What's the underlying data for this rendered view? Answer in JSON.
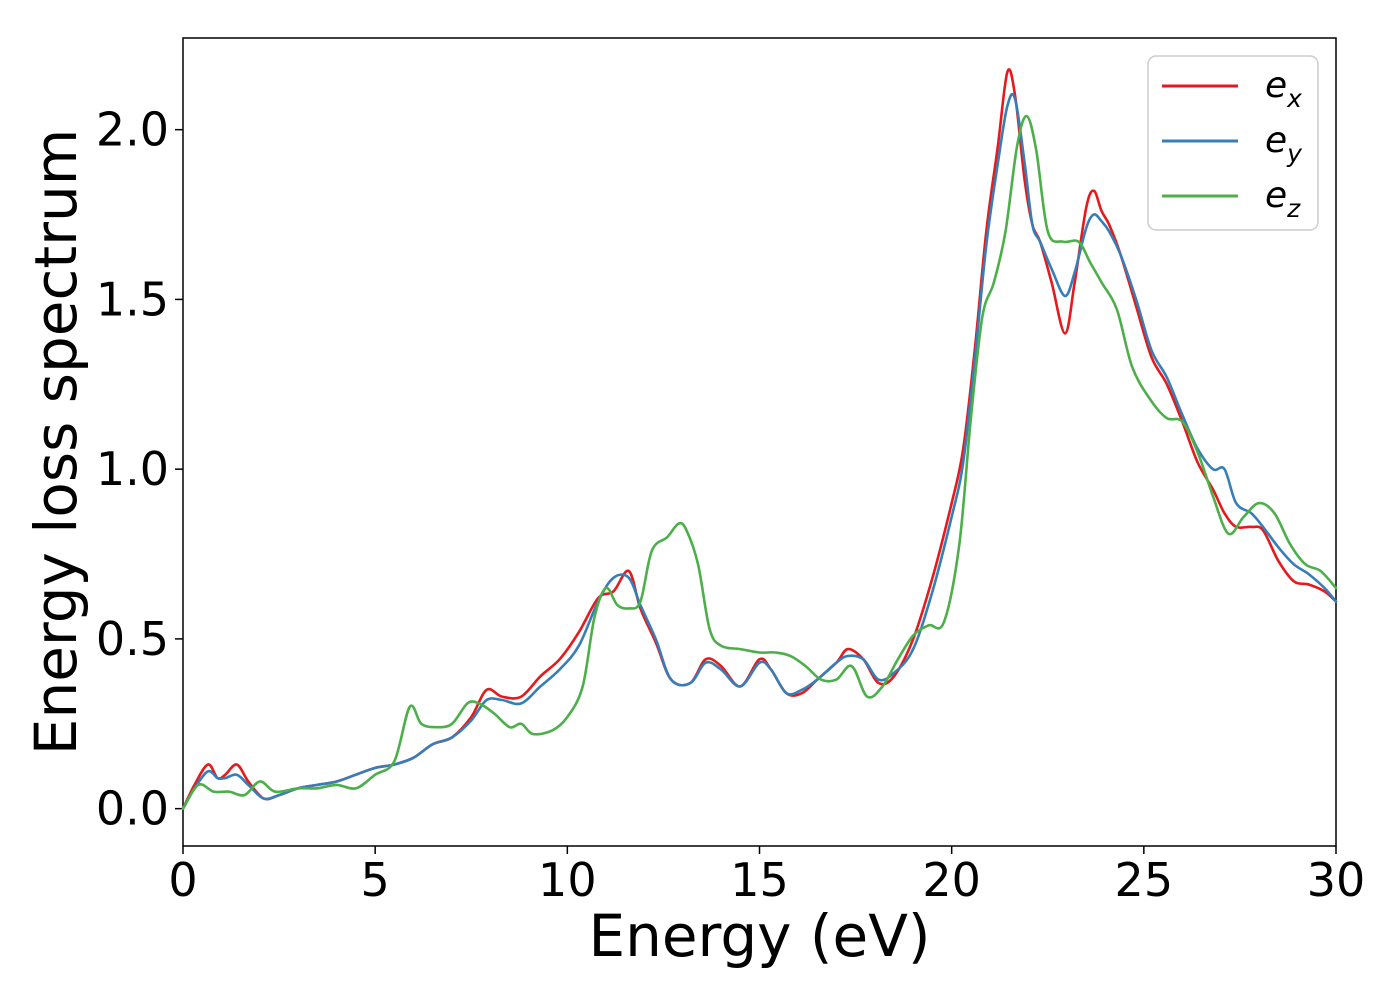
{
  "chart_data": {
    "type": "line",
    "title": "",
    "xlabel": "Energy (eV)",
    "ylabel": "Energy loss spectrum",
    "xlim": [
      0,
      30
    ],
    "ylim": [
      -0.11,
      2.27
    ],
    "xticks": [
      0,
      5,
      10,
      15,
      20,
      25,
      30
    ],
    "xtick_labels": [
      "0",
      "5",
      "10",
      "15",
      "20",
      "25",
      "30"
    ],
    "yticks": [
      0.0,
      0.5,
      1.0,
      1.5,
      2.0
    ],
    "ytick_labels": [
      "0.0",
      "0.5",
      "1.0",
      "1.5",
      "2.0"
    ],
    "grid": false,
    "legend_position": "top-right",
    "series": [
      {
        "name": "e_x",
        "legend_base": "e",
        "legend_sub": "x",
        "color": "#e41a1c",
        "x": [
          0,
          0.3,
          0.65,
          0.9,
          1.1,
          1.4,
          1.7,
          2.1,
          2.5,
          3.0,
          3.5,
          4.0,
          4.5,
          5.0,
          5.5,
          6.0,
          6.5,
          7.0,
          7.5,
          7.9,
          8.3,
          8.8,
          9.3,
          9.8,
          10.3,
          10.8,
          11.2,
          11.6,
          11.9,
          12.3,
          12.7,
          13.2,
          13.6,
          14.0,
          14.5,
          15.0,
          15.3,
          15.7,
          16.1,
          16.5,
          17.0,
          17.3,
          17.7,
          18.1,
          18.5,
          19.0,
          19.5,
          20.0,
          20.3,
          20.6,
          20.9,
          21.2,
          21.45,
          21.65,
          21.9,
          22.1,
          22.3,
          22.6,
          22.95,
          23.2,
          23.5,
          23.7,
          23.9,
          24.1,
          24.4,
          24.8,
          25.2,
          25.6,
          26.0,
          26.4,
          26.8,
          27.1,
          27.4,
          27.8,
          28.1,
          28.5,
          28.9,
          29.3,
          29.7,
          30.0
        ],
        "y": [
          0.0,
          0.07,
          0.13,
          0.09,
          0.1,
          0.13,
          0.08,
          0.03,
          0.04,
          0.06,
          0.07,
          0.08,
          0.1,
          0.12,
          0.13,
          0.15,
          0.19,
          0.21,
          0.27,
          0.35,
          0.33,
          0.33,
          0.39,
          0.44,
          0.52,
          0.62,
          0.64,
          0.7,
          0.59,
          0.49,
          0.38,
          0.37,
          0.44,
          0.42,
          0.36,
          0.44,
          0.41,
          0.34,
          0.34,
          0.38,
          0.43,
          0.47,
          0.44,
          0.37,
          0.39,
          0.5,
          0.68,
          0.9,
          1.06,
          1.35,
          1.7,
          1.95,
          2.17,
          2.1,
          1.85,
          1.72,
          1.67,
          1.55,
          1.4,
          1.55,
          1.77,
          1.82,
          1.76,
          1.72,
          1.63,
          1.48,
          1.33,
          1.25,
          1.14,
          1.02,
          0.94,
          0.87,
          0.83,
          0.83,
          0.82,
          0.73,
          0.67,
          0.66,
          0.64,
          0.61
        ]
      },
      {
        "name": "e_y",
        "legend_base": "e",
        "legend_sub": "y",
        "color": "#377eb8",
        "x": [
          0,
          0.3,
          0.65,
          0.9,
          1.1,
          1.4,
          1.7,
          2.1,
          2.5,
          3.0,
          3.5,
          4.0,
          4.5,
          5.0,
          5.5,
          6.0,
          6.5,
          7.0,
          7.5,
          7.9,
          8.3,
          8.8,
          9.3,
          9.8,
          10.3,
          10.8,
          11.2,
          11.6,
          11.9,
          12.3,
          12.7,
          13.2,
          13.6,
          14.0,
          14.5,
          15.0,
          15.3,
          15.7,
          16.1,
          16.5,
          17.0,
          17.3,
          17.7,
          18.1,
          18.5,
          19.0,
          19.5,
          20.0,
          20.3,
          20.6,
          20.9,
          21.2,
          21.45,
          21.65,
          21.9,
          22.1,
          22.3,
          22.6,
          22.95,
          23.2,
          23.5,
          23.7,
          23.9,
          24.1,
          24.4,
          24.8,
          25.2,
          25.6,
          26.0,
          26.4,
          26.8,
          27.1,
          27.4,
          27.8,
          28.1,
          28.5,
          28.9,
          29.3,
          29.7,
          30.0
        ],
        "y": [
          0.0,
          0.06,
          0.11,
          0.09,
          0.09,
          0.1,
          0.07,
          0.03,
          0.04,
          0.06,
          0.07,
          0.08,
          0.1,
          0.12,
          0.13,
          0.15,
          0.19,
          0.21,
          0.26,
          0.32,
          0.32,
          0.31,
          0.36,
          0.41,
          0.48,
          0.61,
          0.68,
          0.68,
          0.6,
          0.5,
          0.38,
          0.37,
          0.43,
          0.41,
          0.36,
          0.43,
          0.41,
          0.34,
          0.35,
          0.38,
          0.43,
          0.45,
          0.44,
          0.38,
          0.4,
          0.47,
          0.64,
          0.86,
          1.02,
          1.32,
          1.66,
          1.9,
          2.07,
          2.09,
          1.9,
          1.72,
          1.67,
          1.59,
          1.51,
          1.58,
          1.71,
          1.75,
          1.73,
          1.7,
          1.63,
          1.5,
          1.35,
          1.27,
          1.16,
          1.06,
          1.0,
          1.0,
          0.9,
          0.87,
          0.83,
          0.77,
          0.72,
          0.69,
          0.65,
          0.61
        ]
      },
      {
        "name": "e_z",
        "legend_base": "e",
        "legend_sub": "z",
        "color": "#4daf4a",
        "x": [
          0,
          0.4,
          0.8,
          1.2,
          1.6,
          2.0,
          2.4,
          3.0,
          3.5,
          4.0,
          4.5,
          5.0,
          5.5,
          5.9,
          6.2,
          6.6,
          7.0,
          7.4,
          7.7,
          8.1,
          8.5,
          8.8,
          9.1,
          9.6,
          10.0,
          10.4,
          10.7,
          11.0,
          11.3,
          11.6,
          11.9,
          12.2,
          12.6,
          12.9,
          13.1,
          13.4,
          13.7,
          14.0,
          14.5,
          15.0,
          15.4,
          15.8,
          16.2,
          16.6,
          17.0,
          17.4,
          17.8,
          18.2,
          18.6,
          19.0,
          19.4,
          19.8,
          20.2,
          20.5,
          20.8,
          21.1,
          21.4,
          21.7,
          21.95,
          22.2,
          22.5,
          22.9,
          23.3,
          23.6,
          23.9,
          24.3,
          24.7,
          25.2,
          25.6,
          26.0,
          26.4,
          26.8,
          27.2,
          27.6,
          28.0,
          28.4,
          28.8,
          29.2,
          29.6,
          30.0
        ],
        "y": [
          0.0,
          0.07,
          0.05,
          0.05,
          0.04,
          0.08,
          0.05,
          0.06,
          0.06,
          0.07,
          0.06,
          0.1,
          0.14,
          0.3,
          0.25,
          0.24,
          0.25,
          0.31,
          0.31,
          0.28,
          0.24,
          0.25,
          0.22,
          0.23,
          0.27,
          0.36,
          0.56,
          0.65,
          0.6,
          0.59,
          0.61,
          0.76,
          0.8,
          0.84,
          0.82,
          0.72,
          0.53,
          0.48,
          0.47,
          0.46,
          0.46,
          0.45,
          0.42,
          0.38,
          0.38,
          0.42,
          0.33,
          0.36,
          0.44,
          0.51,
          0.54,
          0.55,
          0.78,
          1.15,
          1.45,
          1.55,
          1.7,
          1.95,
          2.04,
          1.94,
          1.7,
          1.67,
          1.67,
          1.61,
          1.55,
          1.47,
          1.3,
          1.2,
          1.15,
          1.14,
          1.05,
          0.92,
          0.81,
          0.86,
          0.9,
          0.87,
          0.78,
          0.72,
          0.7,
          0.65
        ]
      }
    ]
  }
}
